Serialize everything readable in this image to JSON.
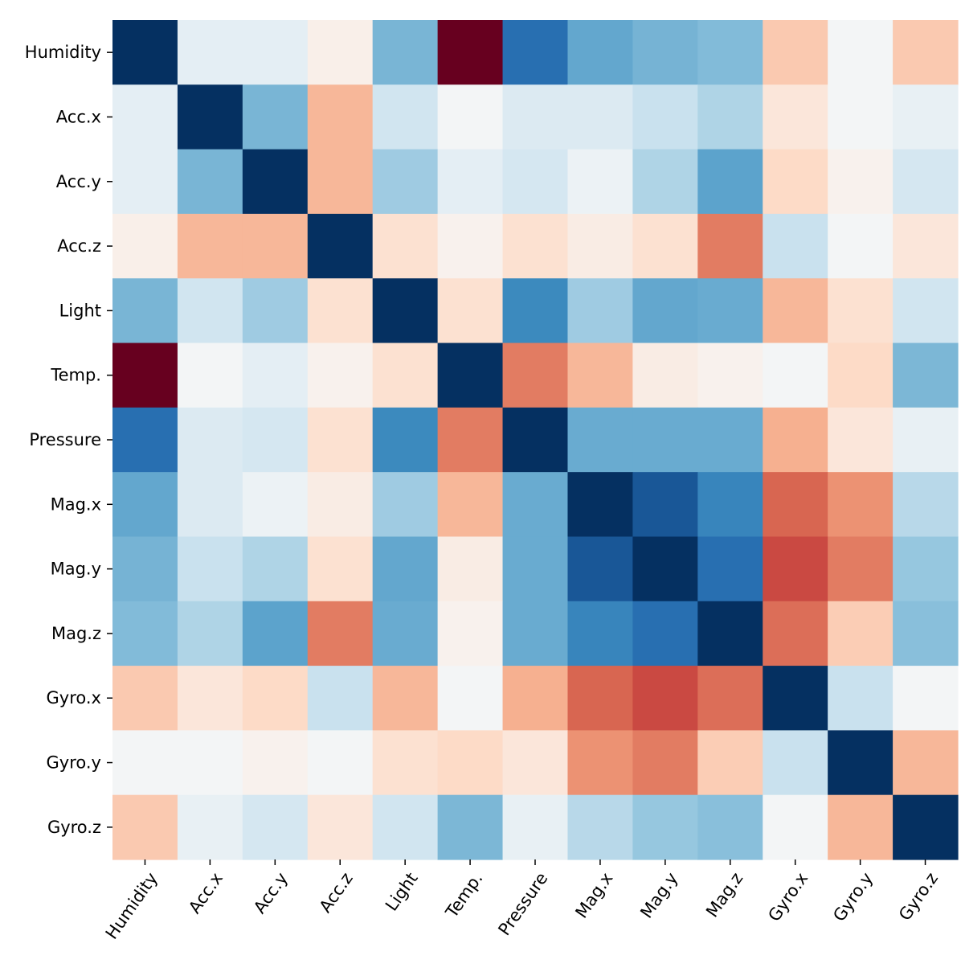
{
  "chart_data": {
    "type": "heatmap",
    "title": "",
    "xlabel": "",
    "ylabel": "",
    "colormap": "RdBu_r",
    "value_range": [
      -1,
      1
    ],
    "colorbar": false,
    "labels": [
      "Humidity",
      "Acc.x",
      "Acc.y",
      "Acc.z",
      "Light",
      "Temp.",
      "Pressure",
      "Mag.x",
      "Mag.y",
      "Mag.z",
      "Gyro.x",
      "Gyro.y",
      "Gyro.z"
    ],
    "matrix": [
      [
        1.0,
        0.05,
        0.05,
        -0.03,
        0.33,
        -1.0,
        0.7,
        0.4,
        0.34,
        0.3,
        -0.15,
        0.01,
        -0.15
      ],
      [
        0.05,
        1.0,
        0.33,
        -0.2,
        0.1,
        0.01,
        0.07,
        0.07,
        0.12,
        0.18,
        -0.06,
        0.01,
        0.04
      ],
      [
        0.05,
        0.33,
        1.0,
        -0.2,
        0.22,
        0.05,
        0.09,
        0.03,
        0.18,
        0.42,
        -0.1,
        -0.02,
        0.09
      ],
      [
        -0.03,
        -0.2,
        -0.2,
        1.0,
        -0.08,
        -0.02,
        -0.08,
        -0.04,
        -0.08,
        -0.4,
        0.12,
        0.01,
        -0.06
      ],
      [
        0.33,
        0.1,
        0.22,
        -0.08,
        1.0,
        -0.08,
        0.55,
        0.22,
        0.4,
        0.38,
        -0.2,
        -0.08,
        0.1
      ],
      [
        -1.0,
        0.01,
        0.05,
        -0.02,
        -0.08,
        1.0,
        -0.4,
        -0.2,
        -0.04,
        -0.02,
        0.01,
        -0.1,
        0.32
      ],
      [
        0.7,
        0.07,
        0.09,
        -0.08,
        0.55,
        -0.4,
        1.0,
        0.38,
        0.38,
        0.38,
        -0.22,
        -0.06,
        0.04
      ],
      [
        0.4,
        0.07,
        0.03,
        -0.04,
        0.22,
        -0.2,
        0.38,
        1.0,
        0.82,
        0.58,
        -0.48,
        -0.32,
        0.16
      ],
      [
        0.34,
        0.12,
        0.18,
        -0.08,
        0.4,
        -0.04,
        0.38,
        0.82,
        1.0,
        0.7,
        -0.58,
        -0.4,
        0.24
      ],
      [
        0.3,
        0.18,
        0.42,
        -0.4,
        0.38,
        -0.02,
        0.38,
        0.58,
        0.7,
        1.0,
        -0.45,
        -0.14,
        0.28
      ],
      [
        -0.15,
        -0.06,
        -0.1,
        0.12,
        -0.2,
        0.01,
        -0.22,
        -0.48,
        -0.58,
        -0.45,
        1.0,
        0.12,
        0.01
      ],
      [
        0.01,
        0.01,
        -0.02,
        0.01,
        -0.08,
        -0.1,
        -0.06,
        -0.32,
        -0.4,
        -0.14,
        0.12,
        1.0,
        -0.2
      ],
      [
        -0.15,
        0.04,
        0.09,
        -0.06,
        0.1,
        0.32,
        0.04,
        0.16,
        0.24,
        0.28,
        0.01,
        -0.2,
        1.0
      ]
    ]
  }
}
